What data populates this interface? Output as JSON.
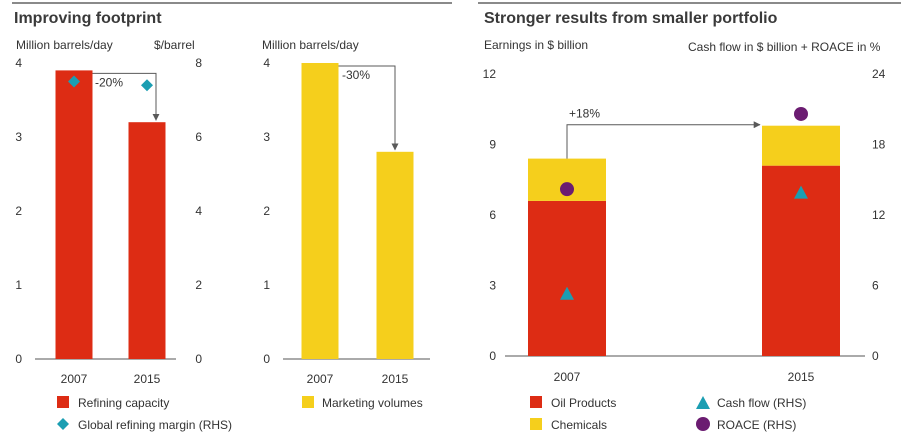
{
  "colors": {
    "red": "#dd2c14",
    "yellow": "#f5cf1c",
    "teal": "#1b9eb2",
    "purple": "#6b1c71",
    "arrow": "#595959"
  },
  "left": {
    "title": "Improving footprint",
    "legend": {
      "refining": "Refining capacity",
      "margin": "Global refining margin (RHS)",
      "marketing": "Marketing volumes"
    }
  },
  "right": {
    "title": "Stronger results from smaller portfolio",
    "legend": {
      "oil": "Oil Products",
      "chem": "Chemicals",
      "cash": "Cash  flow (RHS)",
      "roace": "ROACE (RHS)"
    }
  },
  "chart_data": [
    {
      "id": "refining",
      "type": "bar",
      "categories": [
        "2007",
        "2015"
      ],
      "series": [
        {
          "name": "Refining capacity",
          "values": [
            3.9,
            3.2
          ],
          "color": "#dd2c14"
        },
        {
          "name": "Global refining margin (RHS)",
          "type": "scatter",
          "axis": "right",
          "values": [
            7.5,
            7.4
          ],
          "color": "#1b9eb2"
        }
      ],
      "ylabel": "Million barrels/day",
      "y2label": "$/barrel",
      "ylim": [
        0,
        4
      ],
      "y2lim": [
        0,
        8
      ],
      "yticks": [
        "0",
        "1",
        "2",
        "3",
        "4"
      ],
      "y2ticks": [
        "0",
        "2",
        "4",
        "6",
        "8"
      ],
      "annotation": "-20%"
    },
    {
      "id": "marketing",
      "type": "bar",
      "categories": [
        "2007",
        "2015"
      ],
      "series": [
        {
          "name": "Marketing volumes",
          "values": [
            4.0,
            2.8
          ],
          "color": "#f5cf1c"
        }
      ],
      "ylabel": "Million barrels/day",
      "ylim": [
        0,
        4
      ],
      "yticks": [
        "0",
        "1",
        "2",
        "3",
        "4"
      ],
      "annotation": "-30%"
    },
    {
      "id": "earnings",
      "type": "bar",
      "stacked": true,
      "categories": [
        "2007",
        "2015"
      ],
      "series": [
        {
          "name": "Oil Products",
          "values": [
            6.6,
            8.1
          ],
          "color": "#dd2c14"
        },
        {
          "name": "Chemicals",
          "values": [
            1.8,
            1.7
          ],
          "color": "#f5cf1c"
        },
        {
          "name": "Cash  flow (RHS)",
          "type": "scatter",
          "axis": "right",
          "marker": "triangle",
          "values": [
            5.3,
            13.9
          ],
          "color": "#1b9eb2"
        },
        {
          "name": "ROACE (RHS)",
          "type": "scatter",
          "axis": "right",
          "marker": "circle",
          "values": [
            14.2,
            20.6
          ],
          "color": "#6b1c71"
        }
      ],
      "ylabel": "Earnings in $ billion",
      "y2label": "Cash flow in $ billion + ROACE in %",
      "ylim": [
        0,
        12
      ],
      "y2lim": [
        0,
        24
      ],
      "yticks": [
        "0",
        "3",
        "6",
        "9",
        "12"
      ],
      "y2ticks": [
        "0",
        "6",
        "12",
        "18",
        "24"
      ],
      "annotation": "+18%"
    }
  ]
}
